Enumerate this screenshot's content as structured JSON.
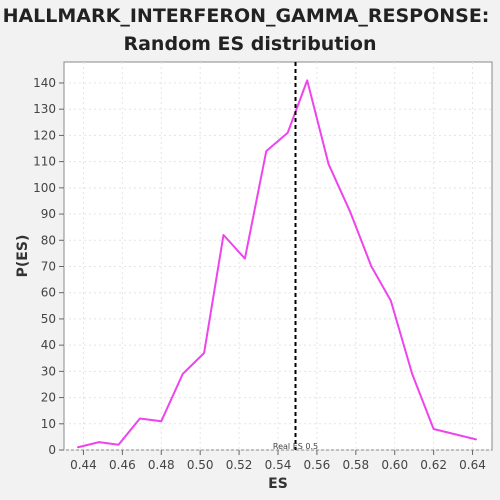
{
  "chart_data": {
    "type": "line",
    "title_line1": "HALLMARK_INTERFERON_GAMMA_RESPONSE:",
    "title_line2": "Random ES distribution",
    "xlabel": "ES",
    "ylabel": "P(ES)",
    "xlim": [
      0.43,
      0.65
    ],
    "ylim": [
      0,
      148
    ],
    "x_ticks": [
      0.44,
      0.46,
      0.48,
      0.5,
      0.52,
      0.54,
      0.56,
      0.58,
      0.6,
      0.62,
      0.64
    ],
    "x_tick_labels": [
      "0.44",
      "0.46",
      "0.48",
      "0.50",
      "0.52",
      "0.54",
      "0.56",
      "0.58",
      "0.60",
      "0.62",
      "0.64"
    ],
    "y_ticks": [
      0,
      10,
      20,
      30,
      40,
      50,
      60,
      70,
      80,
      90,
      100,
      110,
      120,
      130,
      140
    ],
    "y_tick_labels": [
      "0",
      "10",
      "20",
      "30",
      "40",
      "50",
      "60",
      "70",
      "80",
      "90",
      "100",
      "110",
      "120",
      "130",
      "140"
    ],
    "grid": true,
    "series": [
      {
        "color": "#ee44ee",
        "x": [
          0.437,
          0.448,
          0.458,
          0.469,
          0.48,
          0.491,
          0.502,
          0.512,
          0.523,
          0.534,
          0.545,
          0.555,
          0.566,
          0.577,
          0.588,
          0.598,
          0.609,
          0.62,
          0.642
        ],
        "y": [
          1,
          3,
          2,
          12,
          11,
          29,
          37,
          82,
          73,
          114,
          121,
          141,
          109,
          91,
          70,
          57,
          29,
          8,
          4
        ]
      }
    ],
    "annotations": [
      {
        "type": "vline",
        "x": 0.549,
        "style": "dashed",
        "color": "#000000",
        "label": "Real ES 0.5"
      }
    ]
  }
}
